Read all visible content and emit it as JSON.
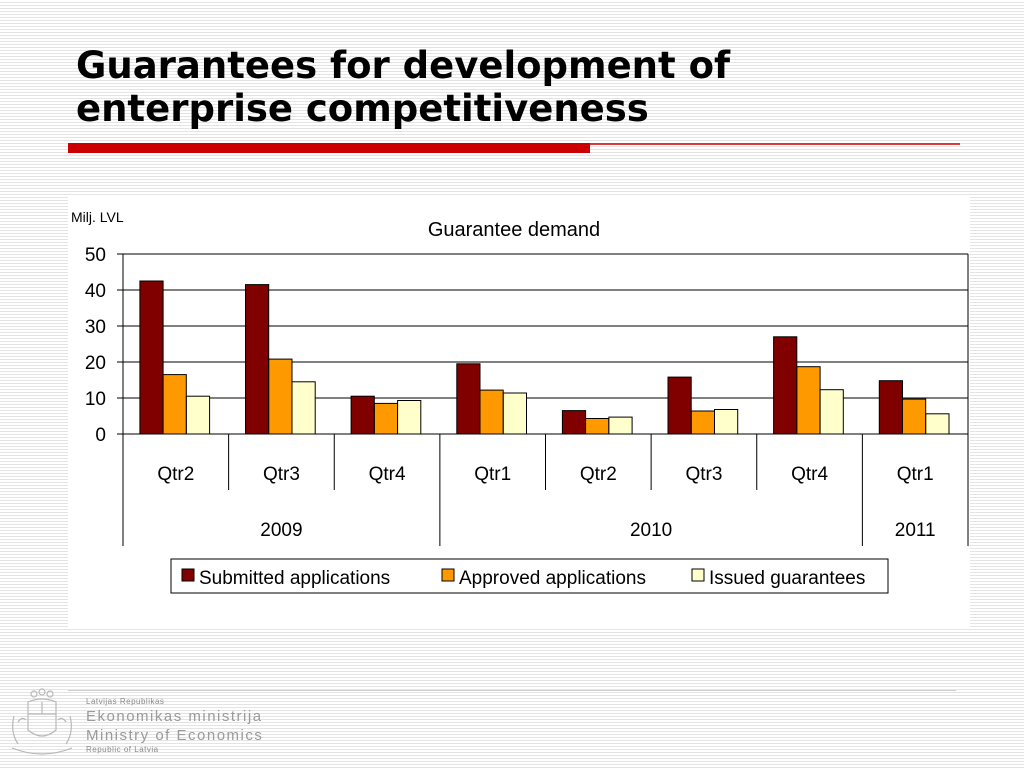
{
  "slide": {
    "title_lines": [
      "Guarantees for development of",
      "enterprise competitiveness"
    ]
  },
  "colors": {
    "accent": "#cc0000"
  },
  "footer": {
    "small_top": "Latvijas Republikas",
    "ministry_lv": "Ekonomikas ministrija",
    "ministry_en": "Ministry of Economics",
    "small_bottom": "Republic of Latvia",
    "emblem_icon": "latvia-coat-of-arms-icon"
  },
  "chart_data": {
    "type": "bar",
    "title": "Guarantee demand",
    "unit_label": "Milj. LVL",
    "categories": [
      "Qtr2",
      "Qtr3",
      "Qtr4",
      "Qtr1",
      "Qtr2",
      "Qtr3",
      "Qtr4",
      "Qtr1"
    ],
    "year_groups": [
      {
        "label": "2009",
        "span": 3
      },
      {
        "label": "2010",
        "span": 4
      },
      {
        "label": "2011",
        "span": 1
      }
    ],
    "series": [
      {
        "name": "Submitted applications",
        "color": "#800000",
        "values": [
          42.5,
          41.5,
          10.5,
          19.5,
          6.5,
          15.8,
          27.0,
          14.8
        ]
      },
      {
        "name": "Approved applications",
        "color": "#ff9900",
        "values": [
          16.5,
          20.8,
          8.5,
          12.2,
          4.3,
          6.4,
          18.7,
          9.7
        ]
      },
      {
        "name": "Issued guarantees",
        "color": "#ffffcc",
        "values": [
          10.5,
          14.5,
          9.3,
          11.4,
          4.7,
          6.8,
          12.3,
          5.6
        ]
      }
    ],
    "ylim": [
      0,
      50
    ],
    "yticks": [
      0,
      10,
      20,
      30,
      40,
      50
    ],
    "grid": true,
    "legend_position": "bottom"
  }
}
